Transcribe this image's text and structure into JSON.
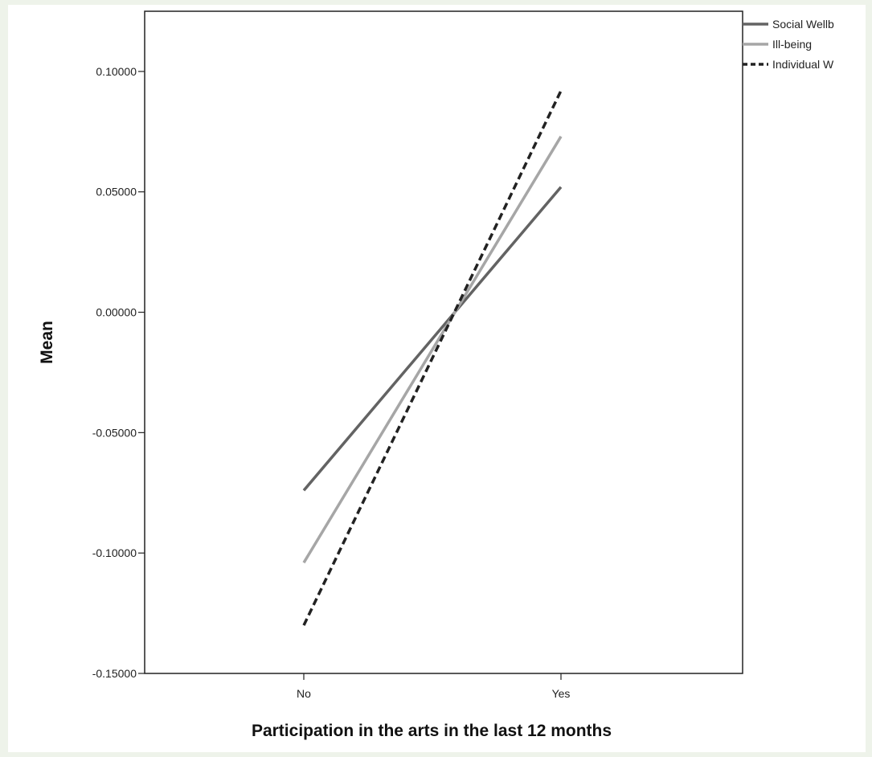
{
  "chart_data": {
    "type": "line",
    "title": "",
    "xlabel": "Participation in the arts in the last 12 months",
    "ylabel": "Mean",
    "categories": [
      "No",
      "Yes"
    ],
    "ylim": [
      -0.15,
      0.125
    ],
    "yticks": [
      "-0.15000",
      "-0.10000",
      "-0.05000",
      "0.00000",
      "0.05000",
      "0.10000"
    ],
    "grid": false,
    "legend_position": "top-right outside",
    "series": [
      {
        "name": "Social Wellb",
        "values": [
          -0.074,
          0.052
        ],
        "color": "#636363",
        "dash": "solid"
      },
      {
        "name": "Ill-being",
        "values": [
          -0.104,
          0.073
        ],
        "color": "#a6a6a6",
        "dash": "solid"
      },
      {
        "name": "Individual W",
        "values": [
          -0.13,
          0.092
        ],
        "color": "#222222",
        "dash": "dashed"
      }
    ]
  }
}
